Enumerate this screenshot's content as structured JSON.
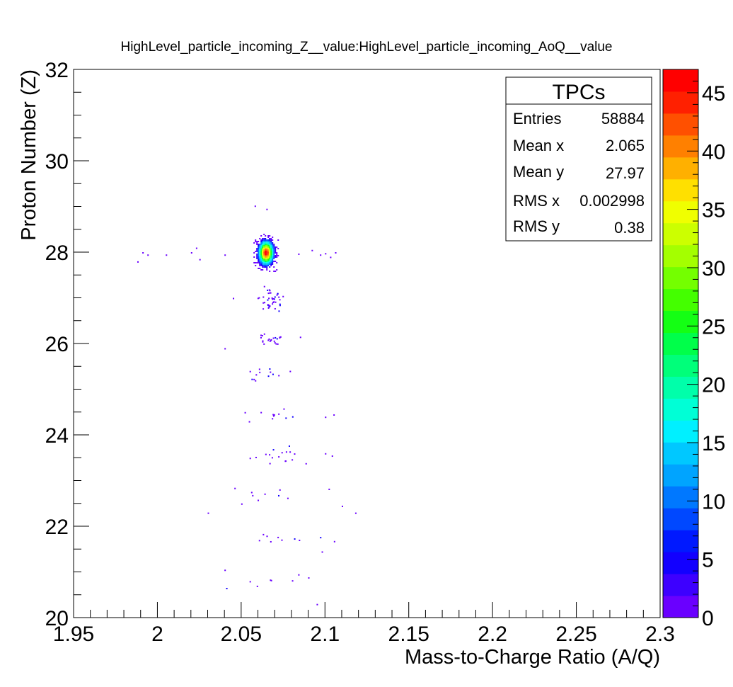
{
  "chart_data": {
    "type": "heatmap",
    "title": "HighLevel_particle_incoming_Z__value:HighLevel_particle_incoming_AoQ__value",
    "xlabel": "Mass-to-Charge Ratio (A/Q)",
    "ylabel": "Proton Number (Z)",
    "xlim": [
      1.95,
      2.3
    ],
    "ylim": [
      20,
      32
    ],
    "x_ticks": [
      "1.95",
      "2",
      "2.05",
      "2.1",
      "2.15",
      "2.2",
      "2.25",
      "2.3"
    ],
    "y_ticks": [
      "20",
      "22",
      "24",
      "26",
      "28",
      "30",
      "32"
    ],
    "colorbar": {
      "range": [
        0,
        47
      ],
      "ticks": [
        "0",
        "5",
        "10",
        "15",
        "20",
        "25",
        "30",
        "35",
        "40",
        "45"
      ],
      "colors": [
        "#6a00ff",
        "#3d00ff",
        "#1200ff",
        "#0019ff",
        "#0048ff",
        "#0078ff",
        "#00a4ff",
        "#00c8ff",
        "#00f0ff",
        "#00ffd6",
        "#00ffaa",
        "#00ff7a",
        "#00ff4a",
        "#14ff14",
        "#44ff00",
        "#74ff00",
        "#a4ff00",
        "#ccff00",
        "#f0ff00",
        "#ffe000",
        "#ffb000",
        "#ff8000",
        "#ff5000",
        "#ff2000",
        "#ff0000"
      ]
    },
    "stats": {
      "title": "TPCs",
      "rows": [
        {
          "label": "Entries",
          "value": "58884"
        },
        {
          "label": "Mean x",
          "value": "2.065"
        },
        {
          "label": "Mean y",
          "value": "27.97"
        },
        {
          "label": "RMS x",
          "value": "0.002998"
        },
        {
          "label": "RMS y",
          "value": "0.38"
        }
      ]
    },
    "main_cluster": {
      "x": 2.0645,
      "y": 28.0,
      "peak": 47
    },
    "clusters": [
      {
        "x": 2.067,
        "y": 27.0,
        "spread_x": 0.003,
        "spread_y": 0.12,
        "count": 40
      },
      {
        "x": 2.068,
        "y": 26.1,
        "spread_x": 0.006,
        "spread_y": 0.08,
        "count": 22
      },
      {
        "x": 2.066,
        "y": 25.3,
        "spread_x": 0.007,
        "spread_y": 0.08,
        "count": 12
      },
      {
        "x": 2.07,
        "y": 24.4,
        "spread_x": 0.009,
        "spread_y": 0.06,
        "count": 10
      },
      {
        "x": 2.072,
        "y": 23.55,
        "spread_x": 0.008,
        "spread_y": 0.08,
        "count": 16
      },
      {
        "x": 2.075,
        "y": 22.7,
        "spread_x": 0.012,
        "spread_y": 0.1,
        "count": 9
      },
      {
        "x": 2.072,
        "y": 21.7,
        "spread_x": 0.012,
        "spread_y": 0.08,
        "count": 10
      },
      {
        "x": 2.07,
        "y": 20.8,
        "spread_x": 0.012,
        "spread_y": 0.12,
        "count": 6
      }
    ],
    "outliers": [
      [
        1.988,
        27.8
      ],
      [
        1.991,
        28.0
      ],
      [
        1.994,
        27.95
      ],
      [
        2.005,
        27.95
      ],
      [
        2.02,
        28.0
      ],
      [
        2.023,
        28.1
      ],
      [
        2.025,
        27.85
      ],
      [
        2.04,
        27.95
      ],
      [
        2.084,
        27.97
      ],
      [
        2.092,
        28.05
      ],
      [
        2.097,
        27.95
      ],
      [
        2.1,
        27.98
      ],
      [
        2.103,
        27.9
      ],
      [
        2.106,
        28.0
      ],
      [
        2.058,
        29.02
      ],
      [
        2.065,
        28.95
      ],
      [
        2.04,
        25.9
      ],
      [
        2.045,
        27.0
      ],
      [
        2.085,
        26.15
      ],
      [
        2.052,
        24.5
      ],
      [
        2.1,
        24.4
      ],
      [
        2.105,
        24.45
      ],
      [
        2.055,
        23.5
      ],
      [
        2.104,
        23.55
      ],
      [
        2.118,
        22.3
      ],
      [
        2.11,
        22.45
      ],
      [
        2.098,
        21.45
      ],
      [
        2.04,
        21.05
      ],
      [
        2.055,
        20.8
      ],
      [
        2.084,
        20.95
      ],
      [
        2.095,
        20.3
      ],
      [
        2.03,
        22.3
      ],
      [
        2.05,
        22.5
      ],
      [
        2.055,
        25.4
      ],
      [
        2.1,
        23.6
      ]
    ]
  }
}
